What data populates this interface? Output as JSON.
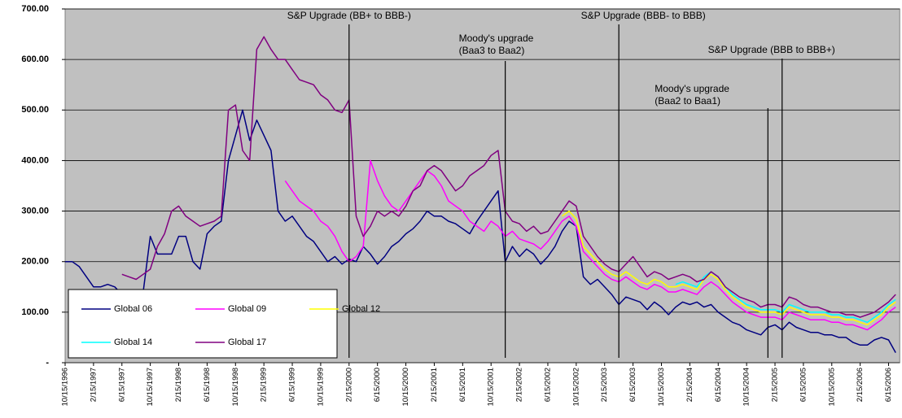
{
  "chart_data": {
    "type": "line",
    "x": [
      "10/15/1996",
      "11/15/1996",
      "12/15/1996",
      "1/15/1997",
      "2/15/1997",
      "3/15/1997",
      "4/15/1997",
      "5/15/1997",
      "6/15/1997",
      "7/15/1997",
      "8/15/1997",
      "9/15/1997",
      "10/15/1997",
      "11/15/1997",
      "12/15/1997",
      "1/15/1998",
      "2/15/1998",
      "3/15/1998",
      "4/15/1998",
      "5/15/1998",
      "6/15/1998",
      "7/15/1998",
      "8/15/1998",
      "9/15/1998",
      "10/15/1998",
      "11/15/1998",
      "12/15/1998",
      "1/15/1999",
      "2/15/1999",
      "3/15/1999",
      "4/15/1999",
      "5/15/1999",
      "6/15/1999",
      "7/15/1999",
      "8/15/1999",
      "9/15/1999",
      "10/15/1999",
      "11/15/1999",
      "12/15/1999",
      "1/15/2000",
      "2/15/2000",
      "3/15/2000",
      "4/15/2000",
      "5/15/2000",
      "6/15/2000",
      "7/15/2000",
      "8/15/2000",
      "9/15/2000",
      "10/15/2000",
      "11/15/2000",
      "12/15/2000",
      "1/15/2001",
      "2/15/2001",
      "3/15/2001",
      "4/15/2001",
      "5/15/2001",
      "6/15/2001",
      "7/15/2001",
      "8/15/2001",
      "9/15/2001",
      "10/15/2001",
      "11/15/2001",
      "12/15/2001",
      "1/15/2002",
      "2/15/2002",
      "3/15/2002",
      "4/15/2002",
      "5/15/2002",
      "6/15/2002",
      "7/15/2002",
      "8/15/2002",
      "9/15/2002",
      "10/15/2002",
      "11/15/2002",
      "12/15/2002",
      "1/15/2003",
      "2/15/2003",
      "3/15/2003",
      "4/15/2003",
      "5/15/2003",
      "6/15/2003",
      "7/15/2003",
      "8/15/2003",
      "9/15/2003",
      "10/15/2003",
      "11/15/2003",
      "12/15/2003",
      "1/15/2004",
      "2/15/2004",
      "3/15/2004",
      "4/15/2004",
      "5/15/2004",
      "6/15/2004",
      "7/15/2004",
      "8/15/2004",
      "9/15/2004",
      "10/15/2004",
      "11/15/2004",
      "12/15/2004",
      "1/15/2005",
      "2/15/2005",
      "3/15/2005",
      "4/15/2005",
      "5/15/2005",
      "6/15/2005",
      "7/15/2005",
      "8/15/2005",
      "9/15/2005",
      "10/15/2005",
      "11/15/2005",
      "12/15/2005",
      "1/15/2006",
      "2/15/2006",
      "3/15/2006",
      "4/15/2006",
      "5/15/2006",
      "6/15/2006",
      "7/15/2006"
    ],
    "xticks": [
      "10/15/1996",
      "2/15/1997",
      "6/15/1997",
      "10/15/1997",
      "2/15/1998",
      "6/15/1998",
      "10/15/1998",
      "2/15/1999",
      "6/15/1999",
      "10/15/1999",
      "2/15/2000",
      "6/15/2000",
      "10/15/2000",
      "2/15/2001",
      "6/15/2001",
      "10/15/2001",
      "2/15/2002",
      "6/15/2002",
      "10/15/2002",
      "2/15/2003",
      "6/15/2003",
      "10/15/2003",
      "2/15/2004",
      "6/15/2004",
      "10/15/2004",
      "2/15/2005",
      "6/15/2005",
      "10/15/2005",
      "2/15/2006",
      "6/15/2006"
    ],
    "ylim": [
      0,
      700
    ],
    "yticks": [
      {
        "value": 0,
        "label": "-"
      },
      {
        "value": 100,
        "label": "100.00"
      },
      {
        "value": 200,
        "label": "200.00"
      },
      {
        "value": 300,
        "label": "300.00"
      },
      {
        "value": 400,
        "label": "400.00"
      },
      {
        "value": 500,
        "label": "500.00"
      },
      {
        "value": 600,
        "label": "600.00"
      },
      {
        "value": 700,
        "label": "700.00"
      }
    ],
    "grid": true,
    "background": "#c0c0c0",
    "series": [
      {
        "name": "Global 06",
        "color": "#000080",
        "values": [
          200,
          200,
          190,
          170,
          150,
          150,
          155,
          150,
          135,
          140,
          130,
          140,
          250,
          215,
          215,
          215,
          250,
          250,
          200,
          185,
          255,
          270,
          280,
          400,
          450,
          500,
          440,
          480,
          450,
          420,
          300,
          280,
          290,
          270,
          250,
          240,
          220,
          200,
          210,
          195,
          205,
          200,
          230,
          215,
          195,
          210,
          230,
          240,
          255,
          265,
          280,
          300,
          290,
          290,
          280,
          275,
          265,
          255,
          280,
          300,
          320,
          340,
          200,
          230,
          210,
          225,
          215,
          195,
          210,
          230,
          260,
          280,
          270,
          170,
          155,
          165,
          150,
          135,
          115,
          130,
          125,
          120,
          105,
          120,
          110,
          95,
          110,
          120,
          115,
          120,
          110,
          115,
          100,
          90,
          80,
          75,
          65,
          60,
          55,
          70,
          75,
          65,
          80,
          70,
          65,
          60,
          60,
          55,
          55,
          50,
          50,
          40,
          35,
          35,
          45,
          50,
          45,
          20
        ]
      },
      {
        "name": "Global 09",
        "color": "#ff00ff",
        "values": [
          null,
          null,
          null,
          null,
          null,
          null,
          null,
          null,
          null,
          null,
          null,
          null,
          null,
          null,
          null,
          null,
          null,
          null,
          null,
          null,
          null,
          null,
          null,
          null,
          null,
          null,
          null,
          null,
          null,
          null,
          null,
          360,
          340,
          320,
          310,
          300,
          280,
          270,
          250,
          220,
          200,
          210,
          230,
          400,
          360,
          330,
          310,
          300,
          320,
          340,
          360,
          380,
          370,
          350,
          320,
          310,
          300,
          280,
          270,
          260,
          280,
          270,
          250,
          260,
          245,
          240,
          235,
          225,
          240,
          260,
          280,
          290,
          270,
          220,
          205,
          190,
          175,
          165,
          160,
          170,
          160,
          150,
          145,
          155,
          150,
          140,
          140,
          145,
          140,
          135,
          150,
          160,
          150,
          135,
          120,
          110,
          100,
          95,
          90,
          90,
          90,
          85,
          100,
          95,
          90,
          85,
          85,
          85,
          80,
          80,
          75,
          75,
          70,
          65,
          75,
          85,
          100,
          110
        ]
      },
      {
        "name": "Global 12",
        "color": "#ffff00",
        "values": [
          null,
          null,
          null,
          null,
          null,
          null,
          null,
          null,
          null,
          null,
          null,
          null,
          null,
          null,
          null,
          null,
          null,
          null,
          null,
          null,
          null,
          null,
          null,
          null,
          null,
          null,
          null,
          null,
          null,
          null,
          null,
          null,
          null,
          null,
          null,
          null,
          null,
          null,
          null,
          null,
          null,
          null,
          null,
          null,
          null,
          null,
          null,
          null,
          null,
          null,
          null,
          null,
          null,
          null,
          null,
          null,
          null,
          null,
          null,
          null,
          null,
          null,
          null,
          null,
          null,
          null,
          null,
          null,
          null,
          null,
          290,
          300,
          285,
          230,
          215,
          200,
          185,
          175,
          170,
          180,
          170,
          160,
          155,
          165,
          160,
          150,
          150,
          155,
          150,
          145,
          165,
          175,
          165,
          145,
          130,
          120,
          110,
          105,
          100,
          100,
          100,
          95,
          110,
          105,
          100,
          95,
          95,
          95,
          90,
          90,
          85,
          85,
          80,
          75,
          85,
          95,
          110,
          120
        ]
      },
      {
        "name": "Global 14",
        "color": "#00ffff",
        "values": [
          null,
          null,
          null,
          null,
          null,
          null,
          null,
          null,
          null,
          null,
          null,
          null,
          null,
          null,
          null,
          null,
          null,
          null,
          null,
          null,
          null,
          null,
          null,
          null,
          null,
          null,
          null,
          null,
          null,
          null,
          null,
          null,
          null,
          null,
          null,
          null,
          null,
          null,
          null,
          null,
          null,
          null,
          null,
          null,
          null,
          null,
          null,
          null,
          null,
          null,
          null,
          null,
          null,
          null,
          null,
          null,
          null,
          null,
          null,
          null,
          null,
          null,
          null,
          null,
          null,
          null,
          null,
          null,
          null,
          null,
          null,
          null,
          null,
          null,
          null,
          null,
          null,
          null,
          null,
          null,
          null,
          null,
          null,
          null,
          null,
          null,
          155,
          160,
          155,
          150,
          170,
          180,
          170,
          150,
          135,
          125,
          115,
          110,
          105,
          105,
          105,
          100,
          115,
          110,
          105,
          100,
          100,
          100,
          95,
          95,
          90,
          90,
          85,
          80,
          90,
          100,
          115,
          125
        ]
      },
      {
        "name": "Global 17",
        "color": "#800080",
        "values": [
          null,
          null,
          null,
          null,
          null,
          null,
          null,
          null,
          175,
          170,
          165,
          175,
          185,
          230,
          255,
          300,
          310,
          290,
          280,
          270,
          275,
          280,
          290,
          500,
          510,
          420,
          400,
          620,
          645,
          620,
          600,
          600,
          580,
          560,
          555,
          550,
          530,
          520,
          500,
          495,
          520,
          290,
          250,
          270,
          300,
          290,
          300,
          290,
          310,
          340,
          350,
          380,
          390,
          380,
          360,
          340,
          350,
          370,
          380,
          390,
          410,
          420,
          300,
          280,
          275,
          260,
          270,
          255,
          260,
          280,
          300,
          320,
          310,
          250,
          230,
          210,
          195,
          185,
          180,
          195,
          210,
          190,
          170,
          180,
          175,
          165,
          170,
          175,
          170,
          160,
          165,
          180,
          170,
          150,
          140,
          130,
          125,
          120,
          110,
          115,
          115,
          110,
          130,
          125,
          115,
          110,
          110,
          105,
          100,
          100,
          95,
          95,
          90,
          95,
          100,
          110,
          120,
          135
        ]
      }
    ],
    "annotations": [
      {
        "lines": [
          "S&P Upgrade (BB+ to BBB-)"
        ],
        "x": "2/15/2000"
      },
      {
        "lines": [
          "Moody's upgrade",
          "(Baa3 to Baa2)"
        ],
        "x": "12/15/2001"
      },
      {
        "lines": [
          "S&P Upgrade (BBB- to BBB)"
        ],
        "x": "4/15/2003"
      },
      {
        "lines": [
          "Moody's upgrade",
          "(Baa2 to Baa1)"
        ],
        "x": "1/15/2005"
      },
      {
        "lines": [
          "S&P Upgrade (BBB to BBB+)"
        ],
        "x": "3/15/2005"
      }
    ]
  }
}
